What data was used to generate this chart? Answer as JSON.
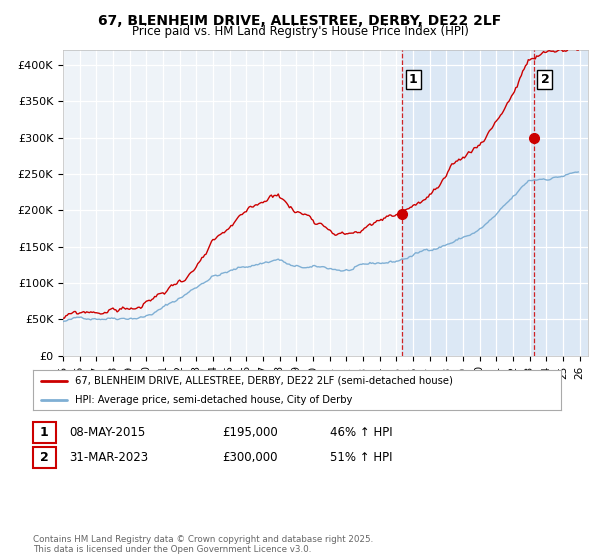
{
  "title": "67, BLENHEIM DRIVE, ALLESTREE, DERBY, DE22 2LF",
  "subtitle": "Price paid vs. HM Land Registry's House Price Index (HPI)",
  "ylabel_ticks": [
    "£0",
    "£50K",
    "£100K",
    "£150K",
    "£200K",
    "£250K",
    "£300K",
    "£350K",
    "£400K"
  ],
  "ytick_values": [
    0,
    50000,
    100000,
    150000,
    200000,
    250000,
    300000,
    350000,
    400000
  ],
  "ylim": [
    0,
    420000
  ],
  "xlim_start": 1995.0,
  "xlim_end": 2026.5,
  "red_color": "#cc0000",
  "blue_color": "#7fafd4",
  "shade_color": "#dce8f5",
  "marker1_x": 2015.35,
  "marker1_y": 195000,
  "marker2_x": 2023.25,
  "marker2_y": 300000,
  "vline1_x": 2015.35,
  "vline2_x": 2023.25,
  "legend_label_red": "67, BLENHEIM DRIVE, ALLESTREE, DERBY, DE22 2LF (semi-detached house)",
  "legend_label_blue": "HPI: Average price, semi-detached house, City of Derby",
  "annotation1_label": "1",
  "annotation2_label": "2",
  "table_row1": [
    "1",
    "08-MAY-2015",
    "£195,000",
    "46% ↑ HPI"
  ],
  "table_row2": [
    "2",
    "31-MAR-2023",
    "£300,000",
    "51% ↑ HPI"
  ],
  "footer": "Contains HM Land Registry data © Crown copyright and database right 2025.\nThis data is licensed under the Open Government Licence v3.0.",
  "background_color": "#ffffff",
  "plot_bg_color": "#eef3f8",
  "grid_color": "#ffffff"
}
